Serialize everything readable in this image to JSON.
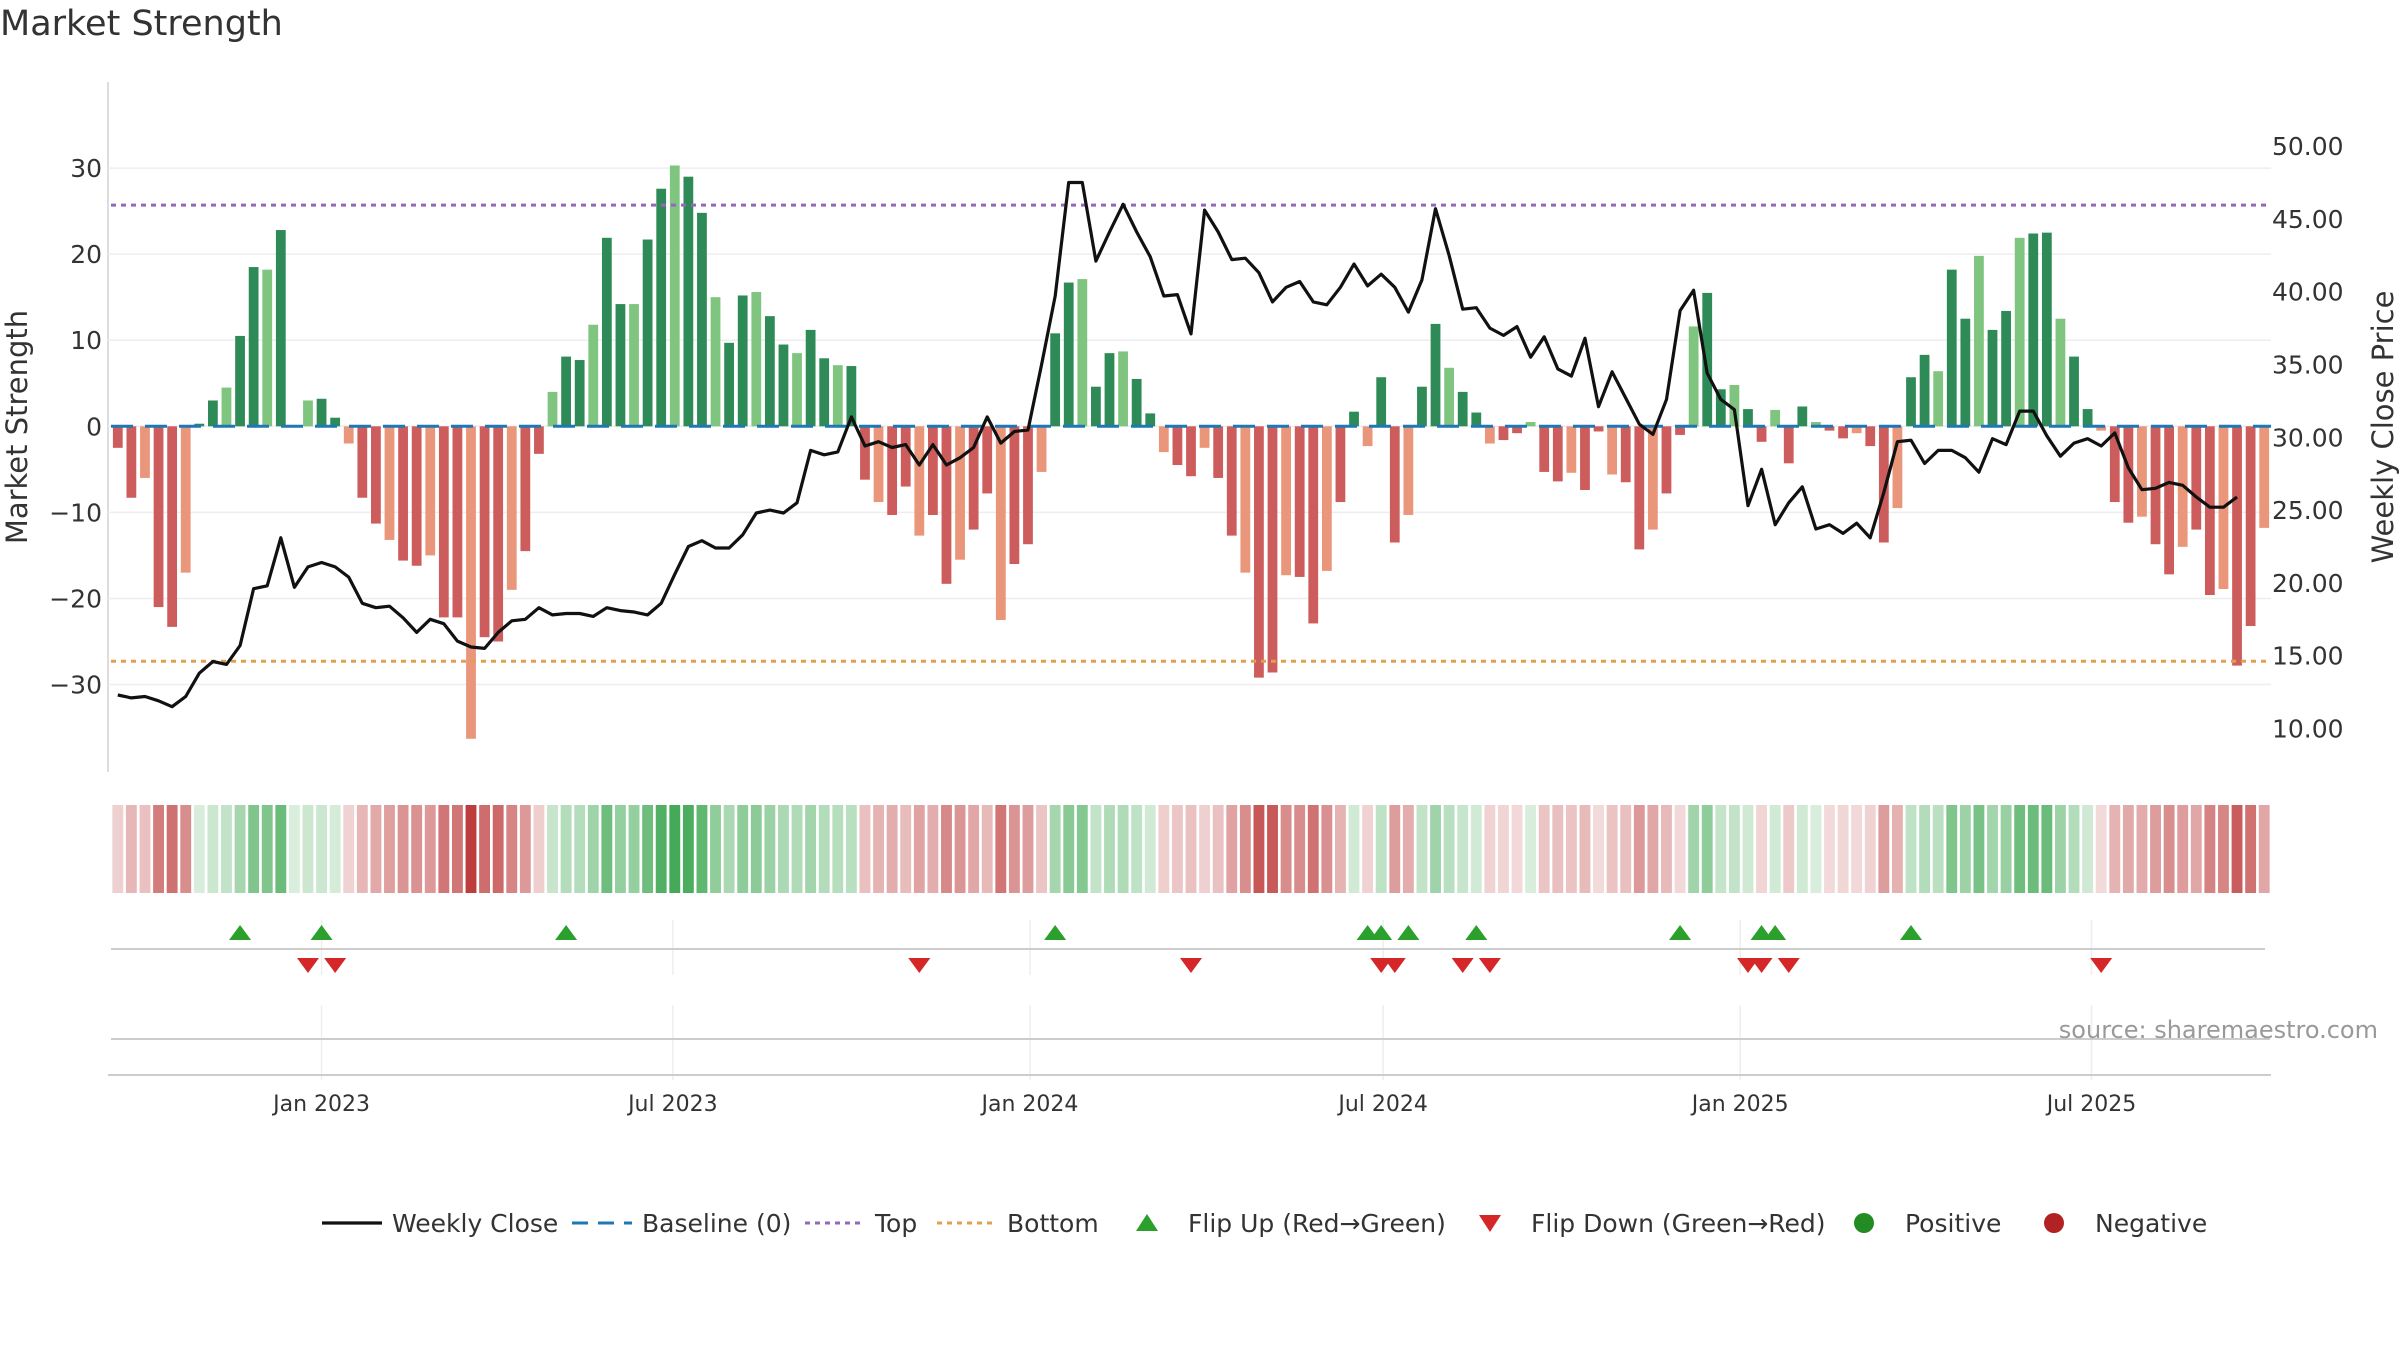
{
  "title": "Market Strength",
  "source": "source: sharemaestro.com",
  "colors": {
    "pos_strong": "#2e8b57",
    "pos_light": "#7fc47f",
    "neg_strong": "#cd5c5c",
    "neg_light": "#e9967a",
    "close_line": "#111111",
    "baseline": "#1f77b4",
    "top": "#9467bd",
    "bottom": "#e0a050",
    "flip_up": "#2ca02c",
    "flip_down": "#d62728",
    "positive_dot": "#228b22",
    "negative_dot": "#b22222"
  },
  "chart_data": {
    "type": "bar",
    "title": "Market Strength",
    "ylabel": "Market Strength",
    "y2label": "Weekly Close Price",
    "ylim": [
      -39,
      40
    ],
    "y2lim": [
      7.7,
      54.4
    ],
    "yticks": [
      30,
      20,
      10,
      0,
      -10,
      -20,
      -30
    ],
    "ytick_labels": [
      "30",
      "20",
      "10",
      "0",
      "−10",
      "−20",
      "−30"
    ],
    "y2ticks": [
      50,
      45,
      40,
      35,
      30,
      25,
      20,
      15,
      10
    ],
    "y2tick_labels": [
      "50.00",
      "45.00",
      "40.00",
      "35.00",
      "30.00",
      "25.00",
      "20.00",
      "15.00",
      "10.00"
    ],
    "xticks": [
      "Jan 2023",
      "Jul 2023",
      "Jan 2024",
      "Jul 2024",
      "Jan 2025",
      "Jul 2025"
    ],
    "xtick_dates": [
      "2023-01-01",
      "2023-07-01",
      "2024-01-01",
      "2024-07-01",
      "2025-01-01",
      "2025-07-01"
    ],
    "week_start": "2022-09-18",
    "top_line": 25.7,
    "bottom_line": -27.3,
    "baseline": 0,
    "strength": [
      -2.5,
      -8.3,
      -6,
      -21,
      -23.3,
      -17,
      0.3,
      3,
      4.5,
      10.5,
      18.5,
      18.2,
      22.8,
      0,
      3,
      3.2,
      1,
      -2,
      -8.3,
      -11.3,
      -13.2,
      -15.6,
      -16.2,
      -15,
      -22.2,
      -22.2,
      -36.3,
      -24.5,
      -25,
      -19,
      -14.5,
      -3.2,
      4,
      8.1,
      7.7,
      11.8,
      21.9,
      14.2,
      14.2,
      21.7,
      27.6,
      30.3,
      29,
      24.8,
      15,
      9.7,
      15.2,
      15.6,
      12.8,
      9.5,
      8.5,
      11.2,
      7.9,
      7.1,
      7,
      -6.2,
      -8.8,
      -10.3,
      -7,
      -12.7,
      -10.3,
      -18.3,
      -15.5,
      -12,
      -7.8,
      -22.5,
      -16,
      -13.7,
      -5.3,
      10.8,
      16.7,
      17.1,
      4.6,
      8.5,
      8.7,
      5.5,
      1.5,
      -3,
      -4.5,
      -5.8,
      -2.5,
      -6,
      -12.7,
      -17,
      -29.2,
      -28.6,
      -17.3,
      -17.5,
      -22.9,
      -16.8,
      -8.8,
      1.7,
      -2.3,
      5.7,
      -13.5,
      -10.3,
      4.6,
      11.9,
      6.8,
      4,
      1.6,
      -2,
      -1.6,
      -0.8,
      0.5,
      -5.3,
      -6.4,
      -5.4,
      -7.4,
      -0.6,
      -5.6,
      -6.5,
      -14.3,
      -12,
      -7.8,
      -1,
      11.6,
      15.5,
      4.3,
      4.8,
      2,
      -1.8,
      1.9,
      -4.3,
      2.3,
      0.5,
      -0.5,
      -1.4,
      -0.8,
      -2.3,
      -13.5,
      -9.5,
      5.7,
      8.3,
      6.4,
      18.2,
      12.5,
      19.8,
      11.2,
      13.4,
      21.9,
      22.4,
      22.5,
      12.5,
      8.1,
      2,
      -0.5,
      -8.8,
      -11.2,
      -10.5,
      -13.7,
      -17.2,
      -14,
      -12,
      -19.6,
      -18.9,
      -27.8,
      -23.2,
      -11.8
    ],
    "close": [
      12.3,
      12.1,
      12.2,
      11.9,
      11.5,
      12.2,
      13.8,
      14.6,
      14.4,
      15.7,
      19.6,
      19.8,
      23.1,
      19.7,
      21.1,
      21.4,
      21.1,
      20.4,
      18.6,
      18.3,
      18.4,
      17.6,
      16.6,
      17.5,
      17.2,
      16.0,
      15.6,
      15.5,
      16.6,
      17.4,
      17.5,
      18.3,
      17.8,
      17.9,
      17.9,
      17.7,
      18.3,
      18.1,
      18.0,
      17.8,
      18.6,
      20.6,
      22.5,
      22.9,
      22.4,
      22.4,
      23.3,
      24.8,
      25.0,
      24.8,
      25.5,
      29.1,
      28.8,
      29.0,
      31.4,
      29.4,
      29.7,
      29.3,
      29.5,
      28.1,
      29.5,
      28.1,
      28.6,
      29.3,
      31.4,
      29.6,
      30.4,
      30.5,
      35.0,
      39.7,
      47.5,
      47.5,
      42.1,
      44.1,
      46.0,
      44.1,
      42.4,
      39.7,
      39.8,
      37.1,
      45.6,
      44.1,
      42.2,
      42.3,
      41.3,
      39.3,
      40.3,
      40.7,
      39.3,
      39.1,
      40.3,
      41.9,
      40.4,
      41.2,
      40.3,
      38.6,
      40.8,
      45.7,
      42.5,
      38.8,
      38.9,
      37.5,
      37.0,
      37.6,
      35.5,
      36.9,
      34.7,
      34.2,
      36.8,
      32.1,
      34.5,
      32.7,
      30.9,
      30.2,
      32.6,
      38.7,
      40.1,
      34.4,
      32.6,
      31.9,
      25.3,
      27.8,
      24.0,
      25.5,
      26.6,
      23.7,
      24.0,
      23.4,
      24.1,
      23.1,
      26.2,
      29.7,
      29.8,
      28.2,
      29.1,
      29.1,
      28.6,
      27.6,
      29.9,
      29.5,
      31.8,
      31.8,
      30.1,
      28.7,
      29.6,
      29.9,
      29.4,
      30.3,
      27.9,
      26.4,
      26.5,
      26.9,
      26.7,
      25.9,
      25.2,
      25.2,
      25.9
    ],
    "flip_up": [
      "2022-11-20",
      "2023-01-01",
      "2023-05-07",
      "2024-01-14",
      "2024-06-23",
      "2024-06-30",
      "2024-07-14",
      "2024-08-18",
      "2024-12-01",
      "2025-01-12",
      "2025-01-19",
      "2025-03-30"
    ],
    "flip_down": [
      "2022-12-25",
      "2023-01-08",
      "2023-11-05",
      "2024-03-24",
      "2024-06-30",
      "2024-07-07",
      "2024-08-11",
      "2024-08-25",
      "2025-01-05",
      "2025-01-12",
      "2025-01-26",
      "2025-07-06"
    ],
    "legend": {
      "placement": "bottom",
      "items": [
        {
          "label": "Weekly Close",
          "marker": "line",
          "color": "#111111"
        },
        {
          "label": "Baseline (0)",
          "marker": "dash",
          "color": "#1f77b4"
        },
        {
          "label": "Top",
          "marker": "dot-line",
          "color": "#9467bd"
        },
        {
          "label": "Bottom",
          "marker": "dot-line",
          "color": "#e0a050"
        },
        {
          "label": "Flip Up (Red→Green)",
          "marker": "triangle-up",
          "color": "#2ca02c"
        },
        {
          "label": "Flip Down (Green→Red)",
          "marker": "triangle-down",
          "color": "#d62728"
        },
        {
          "label": "Positive",
          "marker": "circle",
          "color": "#228b22"
        },
        {
          "label": "Negative",
          "marker": "circle",
          "color": "#b22222"
        }
      ]
    }
  }
}
